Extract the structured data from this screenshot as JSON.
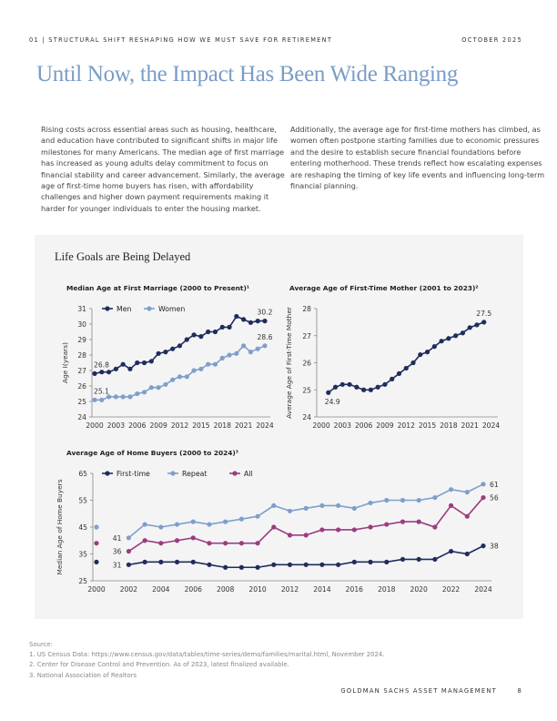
{
  "header": {
    "section": "01 | STRUCTURAL SHIFT RESHAPING HOW WE MUST SAVE FOR RETIREMENT",
    "date": "OCTOBER 2025"
  },
  "title": "Until Now, the Impact Has Been Wide Ranging",
  "paragraphs": [
    "Rising costs across essential areas such as housing, healthcare, and education have contributed to significant shifts in major life milestones for many Americans. The median age of first marriage has increased as young adults delay commitment to focus on financial stability and career advancement. Similarly, the average age of first-time home buyers has risen, with affordability challenges and higher down payment requirements making it harder for younger individuals to enter the housing market.",
    "Additionally, the average age for first-time mothers has climbed, as women often postpone starting families due to economic pressures and the desire to establish secure financial foundations before entering motherhood. These trends reflect how escalating expenses are reshaping the timing of key life events and influencing long-term financial planning."
  ],
  "panel_title": "Life Goals are Being Delayed",
  "chart_data": [
    {
      "type": "line",
      "title": "Median Age at First Marriage (2000 to Present)¹",
      "ylabel": "Age I(years)",
      "xlabel": "",
      "ylim": [
        24,
        31
      ],
      "yticks": [
        24,
        25,
        26,
        27,
        28,
        29,
        30,
        31
      ],
      "xticks": [
        2000,
        2003,
        2006,
        2009,
        2012,
        2015,
        2018,
        2021,
        2024
      ],
      "x": [
        2000,
        2001,
        2002,
        2003,
        2004,
        2005,
        2006,
        2007,
        2008,
        2009,
        2010,
        2011,
        2012,
        2013,
        2014,
        2015,
        2016,
        2017,
        2018,
        2019,
        2020,
        2021,
        2022,
        2023,
        2024
      ],
      "legend": "top-left",
      "series": [
        {
          "name": "Men",
          "color": "#1f2d5c",
          "values": [
            26.8,
            26.9,
            26.9,
            27.1,
            27.4,
            27.1,
            27.5,
            27.5,
            27.6,
            28.1,
            28.2,
            28.4,
            28.6,
            29.0,
            29.3,
            29.2,
            29.5,
            29.5,
            29.8,
            29.8,
            30.5,
            30.3,
            30.1,
            30.2,
            30.2
          ]
        },
        {
          "name": "Women",
          "color": "#7f9fc9",
          "values": [
            25.1,
            25.1,
            25.3,
            25.3,
            25.3,
            25.3,
            25.5,
            25.6,
            25.9,
            25.9,
            26.1,
            26.4,
            26.6,
            26.6,
            27.0,
            27.1,
            27.4,
            27.4,
            27.8,
            28.0,
            28.1,
            28.6,
            28.2,
            28.4,
            28.6
          ]
        }
      ],
      "annotations": [
        {
          "series": 0,
          "x": 2000,
          "text": "26.8",
          "pos": "above"
        },
        {
          "series": 1,
          "x": 2000,
          "text": "25.1",
          "pos": "above"
        },
        {
          "series": 0,
          "x": 2024,
          "text": "30.2",
          "pos": "above"
        },
        {
          "series": 1,
          "x": 2024,
          "text": "28.6",
          "pos": "above"
        }
      ]
    },
    {
      "type": "line",
      "title": "Average Age of First-Time Mother (2001 to 2023)²",
      "ylabel": "Average Age of First-Time Mother",
      "xlabel": "",
      "ylim": [
        24,
        28
      ],
      "yticks": [
        24,
        25,
        26,
        27,
        28
      ],
      "xticks": [
        2000,
        2003,
        2006,
        2009,
        2012,
        2015,
        2018,
        2021,
        2024
      ],
      "x": [
        2001,
        2002,
        2003,
        2004,
        2005,
        2006,
        2007,
        2008,
        2009,
        2010,
        2011,
        2012,
        2013,
        2014,
        2015,
        2016,
        2017,
        2018,
        2019,
        2020,
        2021,
        2022,
        2023
      ],
      "series": [
        {
          "color": "#1f2d5c",
          "values": [
            24.9,
            25.1,
            25.2,
            25.2,
            25.1,
            25.0,
            25.0,
            25.1,
            25.2,
            25.4,
            25.6,
            25.8,
            26.0,
            26.3,
            26.4,
            26.6,
            26.8,
            26.9,
            27.0,
            27.1,
            27.3,
            27.4,
            27.5
          ]
        }
      ],
      "annotations": [
        {
          "series": 0,
          "x": 2001,
          "text": "24.9",
          "pos": "below"
        },
        {
          "series": 0,
          "x": 2023,
          "text": "27.5",
          "pos": "above"
        }
      ]
    },
    {
      "type": "line",
      "title": "Average Age of Home Buyers (2000 to 2024)³",
      "ylabel": "Median Age of Home Buyers",
      "xlabel": "",
      "ylim": [
        25,
        65
      ],
      "yticks": [
        25,
        35,
        45,
        55,
        65
      ],
      "xticks": [
        2000,
        2002,
        2004,
        2006,
        2008,
        2010,
        2012,
        2014,
        2016,
        2018,
        2020,
        2022,
        2024
      ],
      "x": [
        2000,
        2002,
        2003,
        2004,
        2005,
        2006,
        2007,
        2008,
        2009,
        2010,
        2011,
        2012,
        2013,
        2014,
        2015,
        2016,
        2017,
        2018,
        2019,
        2020,
        2021,
        2022,
        2023,
        2024
      ],
      "gap_after_first": true,
      "legend": "top-left",
      "series": [
        {
          "name": "First-time",
          "color": "#1f2d5c",
          "values": [
            32,
            31,
            32,
            32,
            32,
            32,
            31,
            30,
            30,
            30,
            31,
            31,
            31,
            31,
            31,
            32,
            32,
            32,
            33,
            33,
            33,
            36,
            35,
            38
          ]
        },
        {
          "name": "Repeat",
          "color": "#7f9fc9",
          "values": [
            45,
            41,
            46,
            45,
            46,
            47,
            46,
            47,
            48,
            49,
            53,
            51,
            52,
            53,
            53,
            52,
            54,
            55,
            55,
            55,
            56,
            59,
            58,
            61
          ]
        },
        {
          "name": "All",
          "color": "#9b3c7e",
          "values": [
            39,
            36,
            40,
            39,
            40,
            41,
            39,
            39,
            39,
            39,
            45,
            42,
            42,
            44,
            44,
            44,
            45,
            46,
            47,
            47,
            45,
            53,
            49,
            56
          ]
        }
      ],
      "annotations": [
        {
          "series": 1,
          "x": 2002,
          "text": "41",
          "pos": "left"
        },
        {
          "series": 2,
          "x": 2002,
          "text": "36",
          "pos": "left"
        },
        {
          "series": 0,
          "x": 2002,
          "text": "31",
          "pos": "left"
        },
        {
          "series": 1,
          "x": 2024,
          "text": "61",
          "pos": "right"
        },
        {
          "series": 2,
          "x": 2024,
          "text": "56",
          "pos": "right"
        },
        {
          "series": 0,
          "x": 2024,
          "text": "38",
          "pos": "right"
        }
      ]
    }
  ],
  "sources": {
    "label": "Source:",
    "items": [
      "1. US Census Data: https://www.census.gov/data/tables/time-series/demo/families/marital.html, November 2024.",
      "2. Center for Disease Control and Prevention. As of 2023, latest finalized available.",
      "3. National Association of Realtors"
    ]
  },
  "footer": {
    "brand": "GOLDMAN SACHS ASSET MANAGEMENT",
    "page": "8"
  }
}
